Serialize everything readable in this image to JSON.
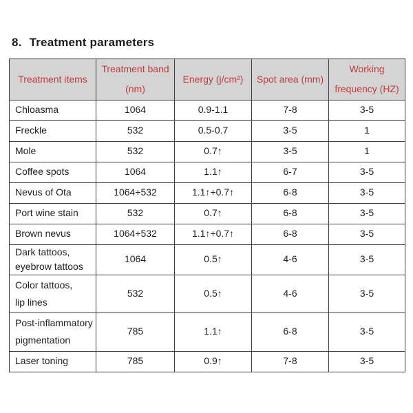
{
  "heading": {
    "number": "8.",
    "title": "Treatment parameters"
  },
  "table": {
    "columns": [
      {
        "label": "Treatment items"
      },
      {
        "label": "Treatment band\n(nm)"
      },
      {
        "label": "Energy (j/cm²)"
      },
      {
        "label": "Spot area (mm)"
      },
      {
        "label": "Working\nfrequency (HZ)"
      }
    ],
    "rows": [
      [
        "Chloasma",
        "1064",
        "0.9-1.1",
        "7-8",
        "3-5"
      ],
      [
        "Freckle",
        "532",
        "0.5-0.7",
        "3-5",
        "1"
      ],
      [
        "Mole",
        "532",
        "0.7↑",
        "3-5",
        "1"
      ],
      [
        "Coffee spots",
        "1064",
        "1.1↑",
        "6-7",
        "3-5"
      ],
      [
        "Nevus of Ota",
        "1064+532",
        "1.1↑+0.7↑",
        "6-8",
        "3-5"
      ],
      [
        "Port wine stain",
        "532",
        "0.7↑",
        "6-8",
        "3-5"
      ],
      [
        "Brown nevus",
        "1064+532",
        "1.1↑+0.7↑",
        "6-8",
        "3-5"
      ],
      [
        "Dark tattoos,\neyebrow tattoos",
        "1064",
        "0.5↑",
        "4-6",
        "3-5"
      ],
      [
        "Color tattoos,\nlip lines",
        "532",
        "0.5↑",
        "4-6",
        "3-5"
      ],
      [
        "Post-inflammatory\npigmentation",
        "785",
        "1.1↑",
        "6-8",
        "3-5"
      ],
      [
        "Laser toning",
        "785",
        "0.9↑",
        "7-8",
        "3-5"
      ]
    ]
  },
  "colors": {
    "header_bg": "#d4d4d4",
    "header_text": "#c23b3b",
    "border": "#3d3d3d",
    "body_text": "#212121"
  }
}
